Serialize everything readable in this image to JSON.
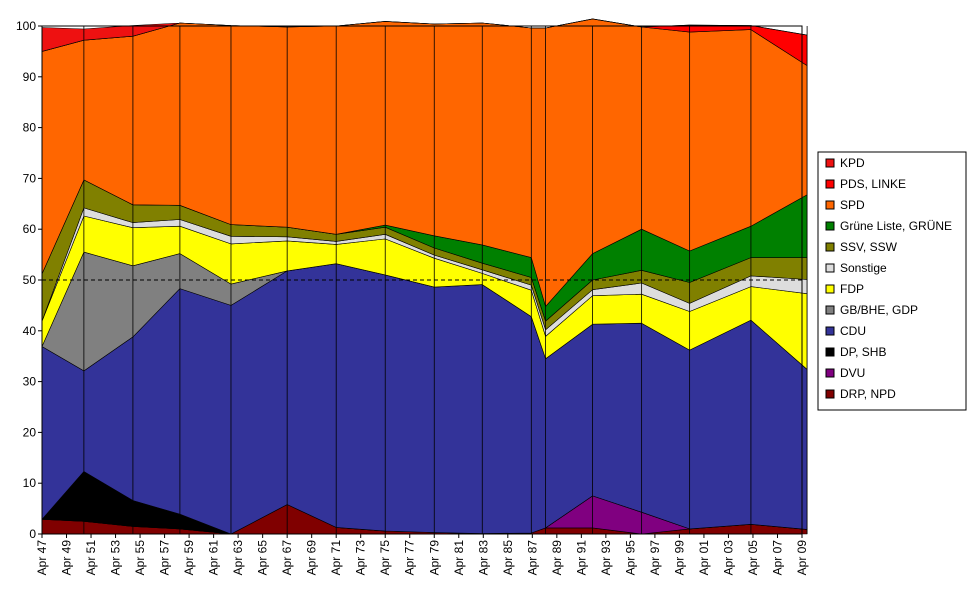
{
  "chart_data": {
    "type": "area",
    "stacked": true,
    "title": "",
    "xlabel": "",
    "ylabel": "",
    "ylim": [
      0,
      100
    ],
    "yticks": [
      0,
      10,
      20,
      30,
      40,
      50,
      60,
      70,
      80,
      90,
      100
    ],
    "x_tick_labels": [
      "Apr 47",
      "Apr 49",
      "Apr 51",
      "Apr 53",
      "Apr 55",
      "Apr 57",
      "Apr 59",
      "Apr 61",
      "Apr 63",
      "Apr 65",
      "Apr 67",
      "Apr 69",
      "Apr 71",
      "Apr 73",
      "Apr 75",
      "Apr 77",
      "Apr 79",
      "Apr 81",
      "Apr 83",
      "Apr 85",
      "Apr 87",
      "Apr 89",
      "Apr 91",
      "Apr 93",
      "Apr 95",
      "Apr 97",
      "Apr 99",
      "Apr 01",
      "Apr 03",
      "Apr 05",
      "Apr 07",
      "Apr 09"
    ],
    "x": [
      "Apr 47",
      "Sep 50",
      "Sep 54",
      "Jul 58",
      "Sep 62",
      "Apr 67",
      "Apr 71",
      "Apr 75",
      "Apr 79",
      "Mar 83",
      "Mar 87",
      "May 88",
      "Mar 92",
      "Mar 96",
      "Feb 00",
      "Feb 05",
      "Sep 09"
    ],
    "reference_line": 50,
    "legend_position": "right",
    "series": [
      {
        "name": "DRP, NPD",
        "color": "#800000",
        "values": [
          2.9,
          2.5,
          1.5,
          1.0,
          0.0,
          5.8,
          1.3,
          0.6,
          0.3,
          0.1,
          0.2,
          1.2,
          1.2,
          0.0,
          1.0,
          1.9,
          0.9
        ]
      },
      {
        "name": "DVU",
        "color": "#800080",
        "values": [
          0,
          0,
          0,
          0,
          0,
          0,
          0,
          0,
          0,
          0,
          0,
          0,
          6.3,
          4.3,
          0.0,
          0.0,
          0.0
        ]
      },
      {
        "name": "DP, SHB",
        "color": "#000000",
        "values": [
          0.0,
          9.8,
          5.1,
          2.9,
          0.0,
          0,
          0,
          0,
          0,
          0,
          0,
          0,
          0,
          0,
          0,
          0,
          0
        ]
      },
      {
        "name": "CDU",
        "color": "#333399",
        "values": [
          34.0,
          19.8,
          32.2,
          44.4,
          45.0,
          46.0,
          51.9,
          50.4,
          48.3,
          49.0,
          42.6,
          33.3,
          33.8,
          37.2,
          35.2,
          40.2,
          31.5
        ]
      },
      {
        "name": "GB/BHE, GDP",
        "color": "#808080",
        "values": [
          0.0,
          23.4,
          14.0,
          6.9,
          4.2,
          0,
          0,
          0,
          0,
          0,
          0,
          0,
          0,
          0,
          0,
          0,
          0
        ]
      },
      {
        "name": "FDP",
        "color": "#ffff00",
        "values": [
          5.0,
          7.1,
          7.5,
          5.4,
          7.9,
          5.9,
          3.8,
          7.1,
          5.7,
          2.2,
          5.2,
          4.4,
          5.6,
          5.7,
          7.6,
          6.6,
          14.9
        ]
      },
      {
        "name": "Sonstige",
        "color": "#dddddd",
        "values": [
          0.0,
          1.6,
          1.0,
          1.3,
          1.5,
          0.8,
          0.6,
          0.9,
          0.6,
          0.7,
          1.0,
          1.3,
          1.2,
          2.2,
          1.6,
          2.1,
          2.8
        ]
      },
      {
        "name": "SSV, SSW",
        "color": "#808000",
        "values": [
          9.3,
          5.5,
          3.5,
          2.8,
          2.3,
          1.9,
          1.4,
          1.4,
          1.4,
          1.3,
          1.5,
          1.7,
          1.9,
          2.5,
          4.1,
          3.6,
          4.3
        ]
      },
      {
        "name": "Grüne Liste, GRÜNE",
        "color": "#008000",
        "values": [
          0,
          0,
          0,
          0,
          0,
          0,
          0,
          0.4,
          2.4,
          3.6,
          3.9,
          2.9,
          5.2,
          8.1,
          6.2,
          6.2,
          12.4
        ]
      },
      {
        "name": "SPD",
        "color": "#ff6600",
        "values": [
          43.8,
          27.5,
          33.2,
          35.9,
          39.2,
          39.4,
          41.0,
          40.1,
          41.7,
          43.7,
          45.2,
          54.8,
          46.2,
          39.8,
          43.1,
          38.7,
          25.4
        ]
      },
      {
        "name": "PDS, LINKE",
        "color": "#ff0000",
        "values": [
          0,
          0,
          0,
          0,
          0,
          0,
          0,
          0,
          0,
          0,
          0,
          0,
          0,
          0,
          1.4,
          0.8,
          6.0
        ]
      },
      {
        "name": "KPD",
        "color": "#ee1111",
        "values": [
          4.7,
          2.2,
          2.1,
          0,
          0,
          0,
          0,
          0,
          0,
          0,
          0,
          0,
          0,
          0,
          0,
          0,
          0
        ]
      }
    ],
    "legend_order": [
      "KPD",
      "PDS, LINKE",
      "SPD",
      "Grüne Liste, GRÜNE",
      "SSV, SSW",
      "Sonstige",
      "FDP",
      "GB/BHE, GDP",
      "CDU",
      "DP, SHB",
      "DVU",
      "DRP, NPD"
    ]
  }
}
